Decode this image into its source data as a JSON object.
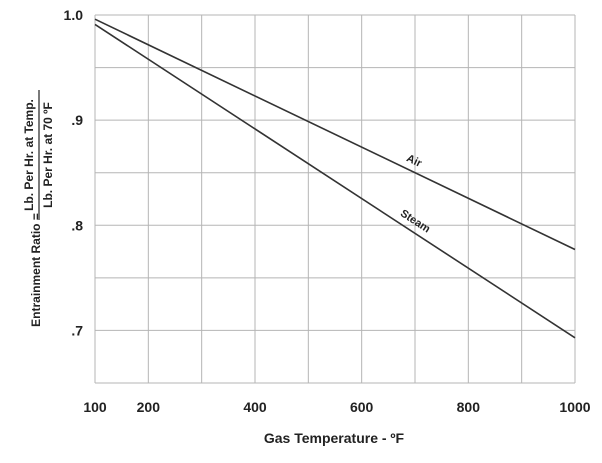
{
  "chart_data": {
    "type": "line",
    "title": "",
    "xlabel": "Gas Temperature - ºF",
    "ylabel": {
      "prefix": "Entrainment Ratio =",
      "numerator": "Lb. Per Hr. at Temp.",
      "denominator": "Lb. Per Hr. at 70 ºF"
    },
    "xlim": [
      100,
      1000
    ],
    "ylim": [
      0.65,
      1.0
    ],
    "x_ticks": [
      100,
      200,
      400,
      600,
      800,
      1000
    ],
    "x_tick_labels": [
      "100",
      "200",
      "400",
      "600",
      "800",
      "1000"
    ],
    "y_ticks": [
      0.7,
      0.8,
      0.9,
      1.0
    ],
    "y_tick_labels": [
      ".7",
      ".8",
      ".9",
      "1.0"
    ],
    "x_grid": [
      100,
      200,
      300,
      400,
      500,
      600,
      700,
      800,
      900,
      1000
    ],
    "y_grid": [
      0.65,
      0.7,
      0.75,
      0.8,
      0.85,
      0.9,
      0.95,
      1.0
    ],
    "grid": true,
    "line_color": "#333333",
    "grid_color": "#b5b5b5",
    "series": [
      {
        "name": "Air",
        "x": [
          100,
          1000
        ],
        "y": [
          0.996,
          0.777
        ],
        "label_at": 690
      },
      {
        "name": "Steam",
        "x": [
          100,
          1000
        ],
        "y": [
          0.991,
          0.693
        ],
        "label_at": 690
      }
    ]
  }
}
